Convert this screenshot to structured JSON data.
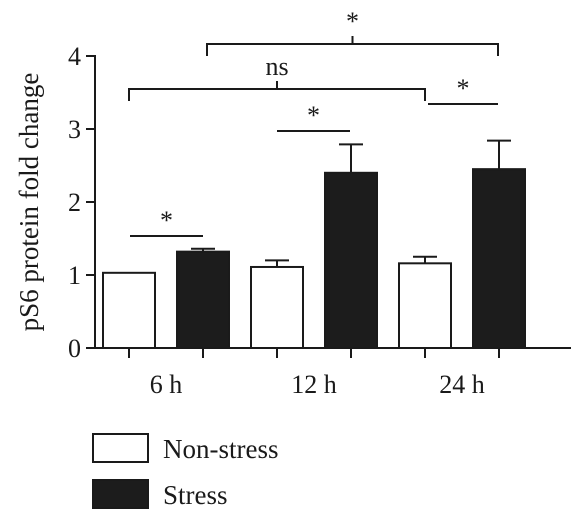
{
  "colors": {
    "non_stress_fill": "#ffffff",
    "stress_fill": "#1c1c1c",
    "stroke": "#1a1a1a"
  },
  "chart_data": {
    "type": "bar",
    "title": "",
    "xlabel": "",
    "ylabel": "pS6 protein fold change",
    "ylim": [
      0,
      4
    ],
    "yticks": [
      "0",
      "1",
      "2",
      "3",
      "4"
    ],
    "grid": false,
    "legend_position": "bottom-left",
    "categories": [
      "6 h",
      "12 h",
      "24 h"
    ],
    "series": [
      {
        "name": "Non-stress",
        "color": "#ffffff",
        "values": [
          1.03,
          1.11,
          1.16
        ],
        "errors": [
          0.0,
          0.09,
          0.09
        ]
      },
      {
        "name": "Stress",
        "color": "#1c1c1c",
        "values": [
          1.32,
          2.4,
          2.45
        ],
        "errors": [
          0.04,
          0.39,
          0.39
        ]
      }
    ],
    "annotations": [
      {
        "label": "*",
        "from": "6 h Non-stress",
        "to": "6 h Stress"
      },
      {
        "label": "*",
        "from": "12 h Non-stress",
        "to": "12 h Stress"
      },
      {
        "label": "*",
        "from": "24 h Non-stress",
        "to": "24 h Stress"
      },
      {
        "label": "ns",
        "from": "6 h Non-stress",
        "to": "24 h Non-stress"
      },
      {
        "label": "*",
        "from": "6 h Stress",
        "to": "24 h Stress"
      }
    ]
  }
}
